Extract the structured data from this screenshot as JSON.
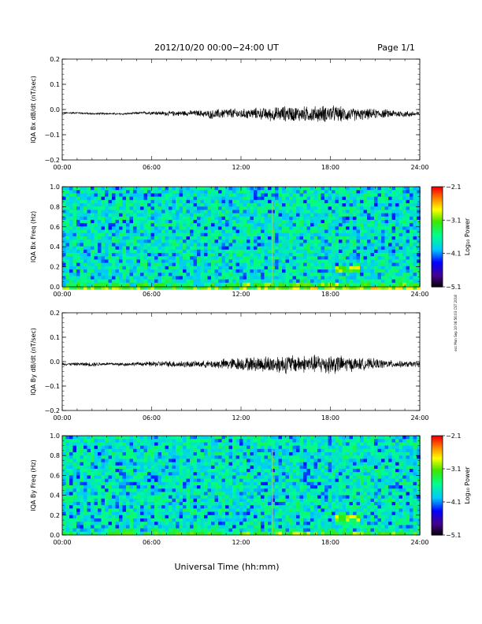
{
  "header": {
    "date_range": "2012/10/20  00:00−24:00 UT",
    "page": "Page 1/1"
  },
  "x_axis": {
    "title": "Universal Time (hh:mm)",
    "ticks": [
      "00:00",
      "06:00",
      "12:00",
      "18:00",
      "24:00"
    ]
  },
  "side_stamp": "ecc Mon Sep 10 06:56:03 CST 2018",
  "chart_data": [
    {
      "type": "line",
      "ylabel": "IQA Bx dB/dt (nT/sec)",
      "ylim": [
        -0.2,
        0.2
      ],
      "yticks": [
        "0.2",
        "0.1",
        "0.0",
        "−0.1",
        "−0.2"
      ],
      "xlim": [
        0,
        24
      ],
      "x": [
        0,
        1,
        2,
        3,
        4,
        5,
        6,
        7,
        8,
        9,
        10,
        11,
        12,
        13,
        14,
        15,
        16,
        17,
        18,
        19,
        20,
        21,
        22,
        23,
        24
      ],
      "center": [
        -0.014,
        -0.013,
        -0.017,
        -0.016,
        -0.018,
        -0.014,
        -0.013,
        -0.016,
        -0.015,
        -0.014,
        -0.02,
        -0.015,
        -0.018,
        -0.015,
        -0.02,
        -0.016,
        -0.018,
        -0.018,
        -0.016,
        -0.02,
        -0.02,
        -0.017,
        -0.016,
        -0.018,
        -0.018
      ],
      "amplitude": [
        0.004,
        0.004,
        0.004,
        0.004,
        0.004,
        0.004,
        0.008,
        0.01,
        0.012,
        0.012,
        0.02,
        0.024,
        0.022,
        0.025,
        0.03,
        0.035,
        0.034,
        0.036,
        0.038,
        0.032,
        0.026,
        0.022,
        0.018,
        0.014,
        0.012
      ]
    },
    {
      "type": "heatmap",
      "ylabel": "IQA Bx Freq (Hz)",
      "ylim": [
        0.0,
        1.0
      ],
      "yticks": [
        "1.0",
        "0.8",
        "0.6",
        "0.4",
        "0.2",
        "0.0"
      ],
      "xlim": [
        0,
        24
      ],
      "colorbar": {
        "label": "Log₁₀ Power",
        "ticks": [
          "−2.1",
          "−3.1",
          "−4.1",
          "−5.1"
        ],
        "range": [
          -5.1,
          -2.1
        ]
      },
      "features": {
        "spike_time_h": 14.1,
        "burst_time_h": 19.0,
        "burst_freq_hz": 0.18
      }
    },
    {
      "type": "line",
      "ylabel": "IQA By dB/dt (nT/sec)",
      "ylim": [
        -0.2,
        0.2
      ],
      "yticks": [
        "0.2",
        "0.1",
        "0.0",
        "−0.1",
        "−0.2"
      ],
      "xlim": [
        0,
        24
      ],
      "x": [
        0,
        1,
        2,
        3,
        4,
        5,
        6,
        7,
        8,
        9,
        10,
        11,
        12,
        13,
        14,
        15,
        16,
        17,
        18,
        19,
        20,
        21,
        22,
        23,
        24
      ],
      "center": [
        -0.01,
        -0.01,
        -0.011,
        -0.009,
        -0.011,
        -0.009,
        -0.01,
        -0.009,
        -0.011,
        -0.01,
        -0.011,
        -0.01,
        -0.009,
        -0.01,
        -0.011,
        -0.01,
        -0.009,
        -0.01,
        -0.01,
        -0.011,
        -0.01,
        -0.009,
        -0.01,
        -0.011,
        -0.01
      ],
      "amplitude": [
        0.006,
        0.007,
        0.01,
        0.007,
        0.008,
        0.008,
        0.012,
        0.014,
        0.016,
        0.014,
        0.018,
        0.026,
        0.03,
        0.034,
        0.04,
        0.044,
        0.04,
        0.042,
        0.048,
        0.036,
        0.028,
        0.024,
        0.018,
        0.014,
        0.012
      ]
    },
    {
      "type": "heatmap",
      "ylabel": "IQA By Freq (Hz)",
      "ylim": [
        0.0,
        1.0
      ],
      "yticks": [
        "1.0",
        "0.8",
        "0.6",
        "0.4",
        "0.2",
        "0.0"
      ],
      "xlim": [
        0,
        24
      ],
      "colorbar": {
        "label": "Log₁₀ Power",
        "ticks": [
          "−2.1",
          "−3.1",
          "−4.1",
          "−5.1"
        ],
        "range": [
          -5.1,
          -2.1
        ]
      },
      "features": {
        "spike_time_h": 14.1,
        "burst_time_h": 19.0,
        "burst_freq_hz": 0.17
      }
    }
  ]
}
